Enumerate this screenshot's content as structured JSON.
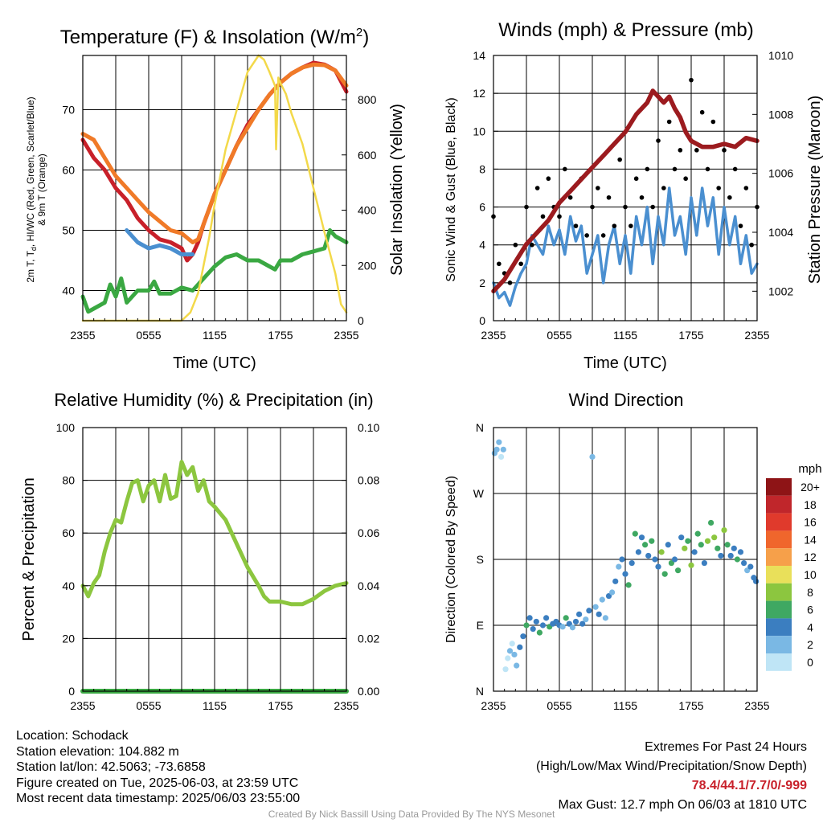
{
  "chart_data": [
    {
      "type": "line",
      "title": "Temperature (F) & Insolation (W/m",
      "title_sup": "2",
      "title_close": ")",
      "xlabel": "Time (UTC)",
      "ylabel_left": [
        "2m T, T",
        "d",
        ", HI/WC (Red, Green, Scarlet/Blue)",
        "& 9m T (Orange)"
      ],
      "ylabel_right": "Solar Insolation (Yellow)",
      "x_ticks": [
        "2355",
        "0555",
        "1155",
        "1755",
        "2355"
      ],
      "x_range_hours": [
        0,
        24
      ],
      "ylim_left": [
        35,
        79
      ],
      "y_ticks_left": [
        40,
        50,
        60,
        70
      ],
      "ylim_right": [
        0,
        960
      ],
      "y_ticks_right": [
        0,
        200,
        400,
        600,
        800
      ],
      "series": [
        {
          "name": "2m T",
          "color": "#c8202a",
          "axis": "left",
          "x": [
            0,
            1,
            2,
            3,
            4,
            5,
            6,
            7,
            8,
            9,
            9.5,
            10,
            10.5,
            11,
            12,
            13,
            14,
            15,
            16,
            17,
            18,
            19,
            20,
            21,
            22,
            22.5,
            23,
            24
          ],
          "y": [
            65,
            62,
            60,
            57,
            55,
            52,
            50,
            48.5,
            48,
            47,
            45,
            46,
            48,
            51,
            56,
            60,
            64,
            67.5,
            70,
            72.5,
            74.5,
            76,
            77,
            77.8,
            77.5,
            77,
            76.5,
            73
          ]
        },
        {
          "name": "9m T",
          "color": "#f07a28",
          "axis": "left",
          "x": [
            0,
            1,
            2,
            3,
            4,
            5,
            6,
            7,
            8,
            9,
            10,
            10.5,
            11,
            12,
            13,
            14,
            15,
            16,
            17,
            18,
            19,
            20,
            21,
            22,
            23,
            24
          ],
          "y": [
            66,
            65,
            62,
            59,
            57,
            55,
            53,
            51.5,
            50,
            49.5,
            48,
            48.5,
            51,
            56,
            60,
            64,
            67,
            70,
            72.5,
            74.5,
            76,
            77,
            77.5,
            77.4,
            76.5,
            74
          ]
        },
        {
          "name": "Td",
          "color": "#3aa842",
          "axis": "left",
          "x": [
            0,
            0.5,
            1,
            2,
            2.5,
            3,
            3.5,
            4,
            5,
            6,
            6.5,
            7,
            8,
            9,
            10,
            10.5,
            11,
            12,
            13,
            14,
            15,
            16,
            17,
            17.5,
            18,
            19,
            20,
            21,
            22,
            22.5,
            23,
            24
          ],
          "y": [
            39,
            36.5,
            37,
            38,
            41,
            39,
            42,
            38,
            40,
            40,
            41.5,
            39.5,
            39.5,
            40.5,
            40,
            41,
            42,
            44,
            45.5,
            46,
            45,
            45,
            44,
            43.5,
            45,
            45,
            46,
            46.5,
            47,
            50,
            49,
            48
          ]
        },
        {
          "name": "HI/WC",
          "color": "#4a8fd0",
          "axis": "left",
          "x": [
            4,
            5,
            6,
            7,
            8,
            9,
            10
          ],
          "y": [
            50,
            48,
            47,
            47.5,
            47,
            46,
            46
          ]
        },
        {
          "name": "Solar Insolation",
          "color": "#f3d94a",
          "axis": "right",
          "x": [
            0,
            9,
            9.8,
            10.5,
            11,
            11.5,
            12,
            12.5,
            13,
            14,
            15,
            16,
            16.5,
            17,
            17.5,
            17.6,
            17.8,
            18,
            18.5,
            19,
            20,
            21,
            22,
            23,
            23.5,
            24
          ],
          "y": [
            0,
            0,
            30,
            100,
            200,
            300,
            420,
            520,
            620,
            760,
            900,
            960,
            945,
            900,
            850,
            620,
            880,
            860,
            820,
            750,
            640,
            480,
            320,
            170,
            60,
            30
          ]
        }
      ]
    },
    {
      "type": "line",
      "title": "Winds (mph) & Pressure (mb)",
      "xlabel": "Time (UTC)",
      "ylabel_left": "Sonic Wind & Gust (Blue, Black)",
      "ylabel_right": "Station Pressure (Maroon)",
      "x_ticks": [
        "2355",
        "0555",
        "1155",
        "1755",
        "2355"
      ],
      "x_range_hours": [
        0,
        24
      ],
      "ylim_left": [
        0,
        14
      ],
      "y_ticks_left": [
        0,
        2,
        4,
        6,
        8,
        10,
        12,
        14
      ],
      "ylim_right": [
        1001,
        1010
      ],
      "y_ticks_right": [
        1002,
        1004,
        1006,
        1008,
        1010
      ],
      "series": [
        {
          "name": "Sonic Wind",
          "color": "#4a8fd0",
          "axis": "left",
          "x": [
            0,
            0.5,
            1,
            1.5,
            2,
            2.5,
            3,
            3.5,
            4,
            4.5,
            5,
            5.5,
            6,
            6.5,
            7,
            7.5,
            8,
            8.5,
            9,
            9.5,
            10,
            10.5,
            11,
            11.5,
            12,
            12.5,
            13,
            13.5,
            14,
            14.5,
            15,
            15.5,
            16,
            16.5,
            17,
            17.5,
            18,
            18.5,
            19,
            19.5,
            20,
            20.5,
            21,
            21.5,
            22,
            22.5,
            23,
            23.5,
            24
          ],
          "y": [
            2,
            1.2,
            1.5,
            0.8,
            1.8,
            2.5,
            3,
            4.5,
            4,
            3.5,
            5,
            4,
            4.8,
            3.5,
            5.5,
            4.2,
            5,
            2.5,
            3.5,
            4.5,
            2,
            4,
            5,
            3,
            4.5,
            2.5,
            5.5,
            4,
            6,
            3,
            5.5,
            4,
            7,
            4.5,
            5.5,
            3.5,
            6.5,
            4.5,
            7,
            5,
            6.5,
            3.5,
            6,
            4,
            5.5,
            3,
            4.5,
            2.5,
            3
          ]
        },
        {
          "name": "Gust",
          "color": "#000000",
          "axis": "left",
          "x": [
            0,
            0.5,
            1,
            1.5,
            2,
            2.5,
            3,
            3.5,
            4,
            4.5,
            5,
            5.5,
            6,
            6.5,
            7,
            7.5,
            8,
            8.5,
            9,
            9.5,
            10,
            10.5,
            11,
            11.5,
            12,
            12.5,
            13,
            13.5,
            14,
            14.5,
            15,
            15.5,
            16,
            16.5,
            17,
            17.5,
            18,
            18.5,
            19,
            19.5,
            20,
            20.5,
            21,
            21.5,
            22,
            22.5,
            23,
            23.5,
            24
          ],
          "y": [
            5.5,
            3,
            2.5,
            2,
            4,
            3,
            6,
            4,
            7,
            5.5,
            7.5,
            6,
            5.5,
            8,
            6.5,
            5,
            7.5,
            4.5,
            6,
            7,
            4.5,
            6.5,
            5,
            8.5,
            6,
            5,
            7.5,
            6.5,
            8,
            6,
            9.5,
            7,
            10.5,
            8,
            9,
            7.5,
            12.7,
            9,
            11,
            8,
            10.5,
            7,
            9,
            6.5,
            8,
            5,
            7,
            4,
            6
          ]
        },
        {
          "name": "Station Pressure",
          "color": "#9c1b1f",
          "axis": "right",
          "x": [
            0,
            1,
            2,
            3,
            4,
            5,
            6,
            7,
            8,
            9,
            10,
            11,
            12,
            13,
            14,
            14.5,
            15,
            15.5,
            16,
            16.5,
            17,
            17.5,
            18,
            19,
            20,
            21,
            22,
            23,
            24
          ],
          "y": [
            1002.0,
            1002.4,
            1003.0,
            1003.6,
            1004.0,
            1004.4,
            1005.0,
            1005.4,
            1005.8,
            1006.2,
            1006.6,
            1007.0,
            1007.4,
            1008.0,
            1008.4,
            1008.8,
            1008.6,
            1008.4,
            1008.6,
            1008.2,
            1007.9,
            1007.4,
            1007.1,
            1006.9,
            1006.9,
            1007.0,
            1006.9,
            1007.2,
            1007.1
          ]
        }
      ]
    },
    {
      "type": "line",
      "title": "Relative Humidity (%) & Precipitation (in)",
      "ylabel_left": "Percent & Precipitation",
      "x_ticks": [
        "2355",
        "0555",
        "1155",
        "1755",
        "2355"
      ],
      "x_range_hours": [
        0,
        24
      ],
      "ylim_left": [
        0,
        100
      ],
      "y_ticks_left": [
        0,
        20,
        40,
        60,
        80,
        100
      ],
      "ylim_right": [
        0,
        0.1
      ],
      "y_ticks_right": [
        "0.00",
        "0.02",
        "0.04",
        "0.06",
        "0.08",
        "0.10"
      ],
      "series": [
        {
          "name": "Relative Humidity",
          "color": "#8cc63f",
          "axis": "left",
          "x": [
            0,
            0.5,
            1,
            1.5,
            2,
            2.5,
            3,
            3.5,
            4,
            4.5,
            5,
            5.5,
            6,
            6.5,
            7,
            7.5,
            8,
            8.5,
            9,
            9.5,
            10,
            10.5,
            11,
            11.5,
            12,
            13,
            14,
            15,
            16,
            16.5,
            17,
            17.5,
            18,
            19,
            20,
            21,
            22,
            23,
            24
          ],
          "y": [
            40,
            36,
            41,
            44,
            53,
            60,
            65,
            64,
            72,
            79,
            80,
            72,
            78,
            80,
            72,
            82,
            73,
            74,
            87,
            82,
            85,
            76,
            80,
            72,
            70,
            65,
            56,
            47,
            40,
            36,
            34,
            34,
            34,
            33,
            33,
            35,
            38,
            40,
            41
          ]
        },
        {
          "name": "Precipitation",
          "color": "#3aa842",
          "axis": "right",
          "x": [
            0,
            24
          ],
          "y": [
            0,
            0
          ]
        }
      ]
    },
    {
      "type": "scatter",
      "title": "Wind Direction",
      "ylabel_left": "Direction (Colored By Speed)",
      "x_ticks": [
        "2355",
        "0555",
        "1155",
        "1755",
        "2355"
      ],
      "x_range_hours": [
        0,
        24
      ],
      "y_range_deg": [
        0,
        360
      ],
      "y_ticks": [
        {
          "deg": 0,
          "label": "N"
        },
        {
          "deg": 90,
          "label": "E"
        },
        {
          "deg": 180,
          "label": "S"
        },
        {
          "deg": 270,
          "label": "W"
        },
        {
          "deg": 360,
          "label": "N"
        }
      ],
      "colorbar_title": "mph",
      "colorbar": [
        {
          "label": "20+",
          "color": "#8e1416"
        },
        {
          "label": "18",
          "color": "#c0262b"
        },
        {
          "label": "16",
          "color": "#e03a2c"
        },
        {
          "label": "14",
          "color": "#f0662c"
        },
        {
          "label": "12",
          "color": "#f6a04a"
        },
        {
          "label": "10",
          "color": "#e9e05a"
        },
        {
          "label": "8",
          "color": "#8cc63f"
        },
        {
          "label": "6",
          "color": "#3fa862"
        },
        {
          "label": "4",
          "color": "#3b7ec0"
        },
        {
          "label": "2",
          "color": "#7ab8e4"
        },
        {
          "label": "0",
          "color": "#bfe5f6"
        }
      ],
      "points_hours": [
        0.1,
        0.3,
        0.5,
        0.7,
        0.9,
        1.1,
        1.3,
        1.5,
        1.7,
        1.9,
        2.1,
        2.4,
        2.7,
        3.0,
        3.3,
        3.6,
        3.9,
        4.2,
        4.5,
        4.8,
        5.1,
        5.4,
        5.7,
        6.0,
        6.3,
        6.6,
        6.9,
        7.2,
        7.5,
        7.8,
        8.1,
        8.4,
        8.7,
        9.0,
        9.3,
        9.6,
        9.9,
        10.2,
        10.5,
        10.8,
        11.1,
        11.4,
        11.7,
        12.0,
        12.3,
        12.6,
        12.9,
        13.2,
        13.5,
        13.8,
        14.1,
        14.4,
        14.7,
        15.0,
        15.3,
        15.6,
        15.9,
        16.2,
        16.5,
        16.8,
        17.1,
        17.4,
        17.7,
        18.0,
        18.3,
        18.6,
        18.9,
        19.2,
        19.5,
        19.8,
        20.1,
        20.4,
        20.7,
        21.0,
        21.3,
        21.6,
        21.9,
        22.2,
        22.5,
        22.8,
        23.1,
        23.4,
        23.7,
        23.9
      ],
      "points_deg": [
        325,
        330,
        340,
        320,
        330,
        30,
        45,
        55,
        65,
        50,
        35,
        60,
        75,
        90,
        100,
        85,
        95,
        80,
        90,
        100,
        88,
        92,
        95,
        90,
        88,
        100,
        92,
        87,
        95,
        105,
        92,
        98,
        110,
        320,
        115,
        105,
        125,
        100,
        130,
        135,
        150,
        170,
        180,
        160,
        145,
        175,
        215,
        190,
        210,
        200,
        185,
        205,
        180,
        170,
        190,
        160,
        200,
        175,
        180,
        165,
        210,
        195,
        205,
        172,
        190,
        215,
        200,
        175,
        205,
        230,
        210,
        195,
        185,
        220,
        200,
        185,
        195,
        180,
        190,
        175,
        165,
        170,
        155,
        150
      ],
      "points_mph": [
        1,
        2,
        1,
        0.5,
        2,
        0.5,
        0.5,
        1,
        0.5,
        1.5,
        1,
        3,
        4,
        5,
        3,
        4,
        3,
        6,
        4,
        3,
        5,
        4,
        3,
        4,
        2,
        5,
        3,
        2,
        4,
        3,
        4,
        2,
        3,
        2,
        1,
        3,
        2,
        1,
        3,
        2,
        4,
        2,
        3,
        4,
        5,
        3,
        5,
        4,
        4,
        6,
        3,
        5,
        4,
        3,
        7,
        5,
        4,
        6,
        3,
        6,
        4,
        7,
        5,
        8,
        4,
        6,
        5,
        4,
        7,
        5,
        8,
        6,
        4,
        7,
        5,
        4,
        3,
        5,
        4,
        3,
        2,
        3,
        4,
        3
      ]
    }
  ],
  "info": {
    "location": "Location: Schodack",
    "elevation": "Station elevation: 104.882 m",
    "latlon": "Station lat/lon: 42.5063; -73.6858",
    "created": "Figure created on Tue, 2025-06-03, at 23:59 UTC",
    "recent": "Most recent data timestamp: 2025/06/03 23:55:00"
  },
  "extremes": {
    "title": "Extremes For Past 24 Hours",
    "subtitle": "(High/Low/Max Wind/Precipitation/Snow Depth)",
    "values": "78.4/44.1/7.7/0/-999",
    "gust": "Max Gust: 12.7 mph On 06/03 at 1810 UTC"
  },
  "credit": "Created By Nick Bassill Using Data Provided By The NYS Mesonet"
}
